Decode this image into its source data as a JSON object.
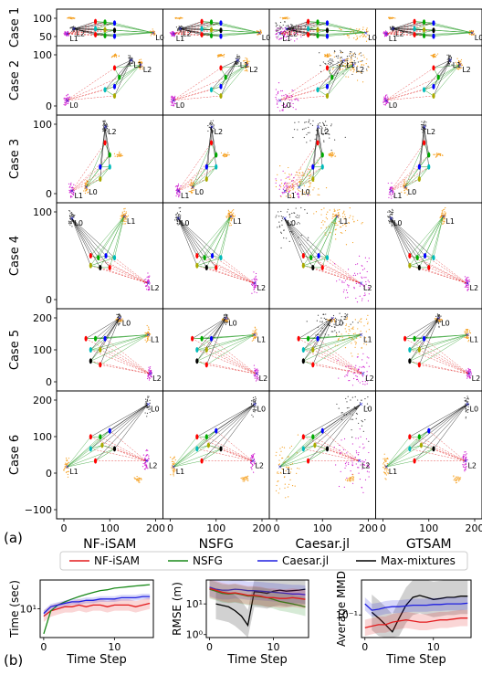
{
  "panel_a": {
    "label": "(a)",
    "columns": [
      "NF-iSAM",
      "NSFG",
      "Caesar.jl",
      "GTSAM"
    ],
    "rows": [
      "Case 1",
      "Case 2",
      "Case 3",
      "Case 4",
      "Case 5",
      "Case 6"
    ],
    "row_yticks": [
      [
        "100",
        "50"
      ],
      [
        "100",
        "0"
      ],
      [
        "100",
        "0"
      ],
      [
        "100",
        "0"
      ],
      [
        "200",
        "100",
        "0"
      ],
      [
        "200",
        "100",
        "0",
        "−100"
      ]
    ],
    "xticks": [
      "0",
      "100",
      "200"
    ],
    "landmark_labels": {
      "case1": [
        "L2",
        "L0",
        "L1"
      ],
      "case2": [
        "L1",
        "L2",
        "L0"
      ],
      "case3": [
        "L2",
        "L0",
        "L1"
      ],
      "case4": [
        "L0",
        "L1",
        "L2"
      ],
      "case5": [
        "L0",
        "L1",
        "L2"
      ],
      "case6": [
        "L0",
        "L1",
        "L2"
      ]
    },
    "colors": {
      "particles_L0": "#404040",
      "particles_L1": "#f5a020",
      "particles_L2": "#d020d0",
      "truth_edges": "#000000",
      "odometry_edges": "#2ca02c",
      "ambiguous_edges": "#e02020",
      "pose_palette": [
        "#ff0000",
        "#00aa00",
        "#0000ff",
        "#00bbbb",
        "#aaaa00",
        "#000000"
      ]
    }
  },
  "panel_b": {
    "label": "(b)",
    "legend": [
      {
        "name": "NF-iSAM",
        "color": "#e31a1c"
      },
      {
        "name": "NSFG",
        "color": "#1a8a1a"
      },
      {
        "name": "Caesar.jl",
        "color": "#1f1fe0"
      },
      {
        "name": "Max-mixtures",
        "color": "#000000"
      }
    ],
    "chart_data": [
      {
        "type": "line",
        "xlabel": "Time Step",
        "ylabel": "Time (sec)",
        "yscale": "log",
        "xlim": [
          -0.5,
          15.5
        ],
        "ylim": [
          2.5,
          40
        ],
        "xticks": [
          0,
          10
        ],
        "yticks": [
          {
            "value": 10,
            "label": "10¹"
          }
        ],
        "x": [
          0,
          1,
          2,
          3,
          4,
          5,
          6,
          7,
          8,
          9,
          10,
          11,
          12,
          13,
          14,
          15
        ],
        "series": [
          {
            "name": "NF-iSAM",
            "color": "#e31a1c",
            "values": [
              7,
              9,
              10,
              11,
              11,
              12,
              11,
              12,
              12,
              11,
              12,
              12,
              12,
              11,
              12,
              13
            ],
            "band": [
              0.12,
              0.12
            ]
          },
          {
            "name": "NSFG",
            "color": "#1a8a1a",
            "values": [
              3,
              9,
              12,
              14,
              16,
              18,
              20,
              22,
              24,
              25,
              27,
              28,
              29,
              30,
              31,
              32
            ]
          },
          {
            "name": "Caesar.jl",
            "color": "#1f1fe0",
            "values": [
              8,
              11,
              12,
              13,
              14,
              14,
              15,
              15,
              16,
              16,
              16,
              17,
              17,
              17,
              18,
              18
            ],
            "band": [
              0.06,
              0.06
            ]
          }
        ]
      },
      {
        "type": "line",
        "xlabel": "Time Step",
        "ylabel": "RMSE (m)",
        "yscale": "log",
        "xlim": [
          -0.5,
          15.5
        ],
        "ylim": [
          0.8,
          60
        ],
        "xticks": [
          0,
          10
        ],
        "yticks": [
          {
            "value": 1,
            "label": "10⁰"
          },
          {
            "value": 10,
            "label": "10¹"
          }
        ],
        "x": [
          0,
          1,
          2,
          3,
          4,
          5,
          6,
          7,
          8,
          9,
          10,
          11,
          12,
          13,
          14,
          15
        ],
        "series": [
          {
            "name": "Max-mixtures",
            "color": "#000000",
            "values": [
              null,
              10,
              9,
              8,
              6,
              4,
              2,
              25,
              24,
              22,
              26,
              28,
              26,
              27,
              28,
              30
            ],
            "band": [
              0.5,
              0.5
            ]
          },
          {
            "name": "Caesar.jl",
            "color": "#1f1fe0",
            "values": [
              35,
              30,
              28,
              28,
              30,
              29,
              27,
              27,
              26,
              25,
              24,
              23,
              22,
              21,
              21,
              20
            ],
            "band": [
              0.3,
              0.3
            ]
          },
          {
            "name": "NSFG",
            "color": "#1a8a1a",
            "values": [
              30,
              26,
              22,
              21,
              22,
              20,
              18,
              18,
              17,
              16,
              14,
              12,
              11,
              10,
              9,
              8
            ],
            "band": [
              0.3,
              0.3
            ]
          },
          {
            "name": "NF-iSAM",
            "color": "#e31a1c",
            "values": [
              32,
              28,
              24,
              22,
              23,
              21,
              19,
              19,
              18,
              16,
              16,
              15,
              15,
              16,
              15,
              14
            ],
            "band": [
              0.3,
              0.3
            ]
          }
        ]
      },
      {
        "type": "line",
        "xlabel": "Time Step",
        "ylabel": "Average MMD",
        "yscale": "log",
        "xlim": [
          -0.5,
          15.5
        ],
        "ylim": [
          0.02,
          1.2
        ],
        "xticks": [
          0,
          10
        ],
        "yticks": [
          {
            "value": 0.1,
            "label": "10⁻¹"
          }
        ],
        "x": [
          0,
          1,
          2,
          3,
          4,
          5,
          6,
          7,
          8,
          9,
          10,
          11,
          12,
          13,
          14,
          15
        ],
        "series": [
          {
            "name": "Max-mixtures",
            "color": "#000000",
            "values": [
              null,
              0.12,
              0.08,
              0.05,
              0.03,
              0.08,
              0.2,
              0.35,
              0.4,
              0.35,
              0.3,
              0.32,
              0.35,
              0.35,
              0.38,
              0.38
            ],
            "band": [
              0.55,
              0.55
            ]
          },
          {
            "name": "Caesar.jl",
            "color": "#1f1fe0",
            "values": [
              0.22,
              0.14,
              0.15,
              0.17,
              0.18,
              0.18,
              0.19,
              0.2,
              0.2,
              0.2,
              0.21,
              0.21,
              0.22,
              0.22,
              0.22,
              0.23
            ],
            "band": [
              0.2,
              0.2
            ]
          },
          {
            "name": "NF-iSAM",
            "color": "#e31a1c",
            "values": [
              0.04,
              0.045,
              0.05,
              0.05,
              0.06,
              0.065,
              0.07,
              0.065,
              0.06,
              0.06,
              0.065,
              0.07,
              0.07,
              0.075,
              0.08,
              0.08
            ],
            "band": [
              0.25,
              0.25
            ]
          }
        ]
      }
    ]
  }
}
